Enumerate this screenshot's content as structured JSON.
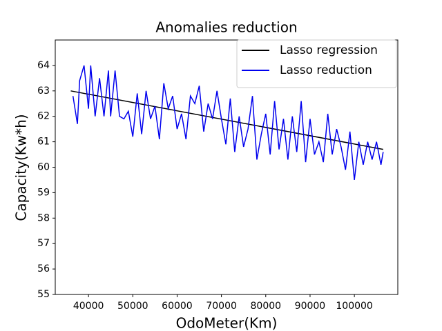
{
  "chart_data": {
    "type": "line",
    "title": "Anomalies reduction",
    "x_label": "OdoMeter(Km)",
    "y_label": "Capacity(Kw*h)",
    "xlim": [
      32500,
      109800
    ],
    "ylim": [
      55,
      65
    ],
    "xticks": [
      40000,
      50000,
      60000,
      70000,
      80000,
      90000,
      100000
    ],
    "yticks": [
      55,
      56,
      57,
      58,
      59,
      60,
      61,
      62,
      63,
      64
    ],
    "legend": "upper right",
    "series": [
      {
        "name": "Lasso regression",
        "color": "#000000",
        "x": [
          36000,
          106500
        ],
        "values": [
          63.0,
          60.7
        ]
      },
      {
        "name": "Lasso reduction",
        "color": "#0000ee",
        "x": [
          36500,
          37500,
          38000,
          39000,
          40000,
          40500,
          41500,
          42500,
          43500,
          44500,
          45000,
          46000,
          47000,
          48000,
          49000,
          50000,
          51000,
          52000,
          53000,
          54000,
          55000,
          56000,
          57000,
          58000,
          59000,
          60000,
          61000,
          62000,
          63000,
          64000,
          65000,
          66000,
          67000,
          68000,
          69000,
          70000,
          71000,
          72000,
          73000,
          74000,
          75000,
          76000,
          77000,
          78000,
          79000,
          80000,
          81000,
          82000,
          83000,
          84000,
          85000,
          86000,
          87000,
          88000,
          89000,
          90000,
          91000,
          92000,
          93000,
          94000,
          95000,
          96000,
          97000,
          98000,
          99000,
          100000,
          101000,
          102000,
          103000,
          104000,
          105000,
          106000,
          106500
        ],
        "values": [
          62.8,
          61.7,
          63.4,
          64.0,
          62.3,
          64.0,
          62.0,
          63.5,
          62.0,
          63.8,
          62.0,
          63.8,
          62.0,
          61.9,
          62.2,
          61.2,
          62.9,
          61.3,
          63.0,
          61.9,
          62.4,
          61.1,
          63.3,
          62.3,
          62.8,
          61.5,
          62.1,
          61.1,
          62.8,
          62.5,
          63.2,
          61.4,
          62.5,
          61.9,
          63.0,
          61.9,
          60.9,
          62.7,
          60.6,
          62.0,
          60.8,
          61.5,
          62.8,
          60.3,
          61.3,
          62.1,
          60.5,
          62.6,
          60.7,
          61.9,
          60.3,
          62.0,
          60.6,
          62.6,
          60.2,
          61.9,
          60.5,
          61.0,
          60.2,
          62.1,
          60.5,
          61.5,
          60.8,
          59.9,
          61.4,
          59.5,
          61.0,
          60.1,
          61.0,
          60.3,
          61.0,
          60.1,
          60.6
        ]
      }
    ]
  }
}
